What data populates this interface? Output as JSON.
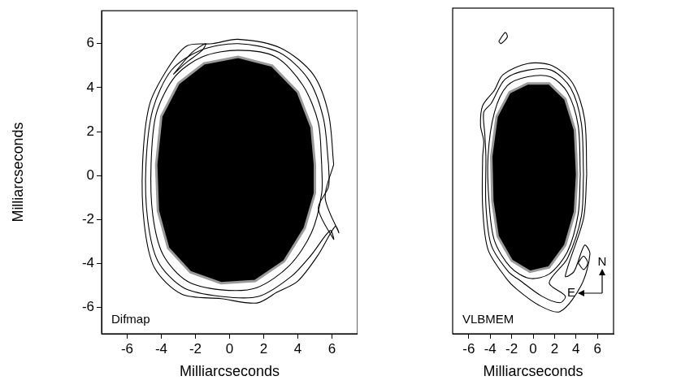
{
  "chart_data": [
    {
      "type": "contour",
      "label": "Difmap",
      "xlabel": "Milliarcseconds",
      "ylabel": "Milliarcseconds",
      "xlim": [
        -7.5,
        7.5
      ],
      "ylim": [
        -7.2,
        7.5
      ],
      "xticks": [
        -6,
        -4,
        -2,
        0,
        2,
        4,
        6
      ],
      "yticks": [
        -6,
        -4,
        -2,
        0,
        2,
        4,
        6
      ],
      "grid": false,
      "color": "#000000",
      "core": {
        "color": "#000000",
        "x": [
          5.0,
          4.8,
          4.0,
          2.5,
          0.5,
          -1.5,
          -3.0,
          -4.0,
          -4.3,
          -4.2,
          -3.6,
          -2.3,
          -0.5,
          1.5,
          3.2,
          4.4,
          5.0,
          5.0
        ],
        "y": [
          0.5,
          2.2,
          3.8,
          5.0,
          5.4,
          5.1,
          4.2,
          2.7,
          0.5,
          -1.6,
          -3.3,
          -4.4,
          -4.9,
          -4.8,
          -3.9,
          -2.4,
          -0.8,
          0.5
        ]
      },
      "contours": [
        {
          "x": [
            5.4,
            5.2,
            4.3,
            2.7,
            0.5,
            -1.6,
            -3.2,
            -4.3,
            -4.6,
            -4.5,
            -3.9,
            -2.5,
            -0.5,
            1.6,
            3.5,
            4.8,
            5.4,
            5.4
          ],
          "y": [
            0.5,
            2.4,
            4.1,
            5.4,
            5.7,
            5.4,
            4.5,
            2.8,
            0.5,
            -1.8,
            -3.6,
            -4.8,
            -5.2,
            -5.1,
            -4.1,
            -2.6,
            -0.8,
            0.5
          ]
        },
        {
          "x": [
            5.8,
            5.5,
            4.6,
            2.9,
            0.5,
            -1.7,
            -3.4,
            -4.5,
            -4.9,
            -4.8,
            -4.2,
            -2.7,
            -0.5,
            1.7,
            3.6,
            4.8,
            5.9,
            6.1,
            5.2,
            5.8,
            5.8
          ],
          "y": [
            0.5,
            2.6,
            4.4,
            5.6,
            6.0,
            5.7,
            4.8,
            3.0,
            0.5,
            -2.0,
            -3.9,
            -5.1,
            -5.5,
            -5.5,
            -4.6,
            -3.6,
            -2.5,
            -2.9,
            -1.5,
            -0.5,
            0.5
          ]
        },
        {
          "x": [
            6.1,
            5.8,
            4.9,
            3.0,
            0.5,
            -1.0,
            -2.5,
            -3.6,
            -4.7,
            -5.1,
            -5.0,
            -4.4,
            -2.8,
            -0.5,
            1.6,
            2.8,
            4.0,
            5.2,
            6.2,
            6.4,
            5.6,
            6.1
          ],
          "y": [
            0.5,
            2.8,
            4.6,
            5.8,
            6.2,
            6.0,
            5.9,
            4.9,
            3.2,
            0.5,
            -2.2,
            -4.2,
            -5.4,
            -5.6,
            -5.8,
            -5.3,
            -4.8,
            -3.6,
            -2.3,
            -2.6,
            -1.0,
            0.5
          ]
        },
        {
          "x": [
            -3.3,
            -2.2,
            -1.4,
            -1.6,
            -2.6,
            -3.3
          ],
          "y": [
            4.6,
            5.6,
            6.0,
            5.7,
            5.1,
            4.6
          ]
        }
      ]
    },
    {
      "type": "contour",
      "label": "VLBMEM",
      "xlabel": "Milliarcseconds",
      "xlim": [
        -7.5,
        7.5
      ],
      "ylim": [
        -7.2,
        7.5
      ],
      "xticks": [
        -6,
        -4,
        -2,
        0,
        2,
        4,
        6
      ],
      "yticks": [
        -6,
        -4,
        -2,
        0,
        2,
        4,
        6
      ],
      "tick_labels": "x",
      "grid": false,
      "color": "#000000",
      "annotations": [
        "N",
        "E"
      ],
      "core": {
        "color": "#000000",
        "x": [
          4.1,
          3.9,
          3.0,
          1.5,
          -0.5,
          -2.2,
          -3.4,
          -3.9,
          -3.8,
          -3.3,
          -2.0,
          -0.3,
          1.5,
          3.0,
          3.9,
          4.1
        ],
        "y": [
          0.0,
          2.0,
          3.4,
          4.1,
          4.1,
          3.7,
          2.6,
          0.8,
          -1.2,
          -2.8,
          -3.9,
          -4.4,
          -4.2,
          -3.2,
          -1.7,
          0.0
        ]
      },
      "contours": [
        {
          "x": [
            4.4,
            4.2,
            3.2,
            1.6,
            -0.5,
            -2.4,
            -3.6,
            -4.2,
            -4.1,
            -3.6,
            -2.1,
            -0.3,
            1.5,
            3.2,
            4.2,
            4.4
          ],
          "y": [
            0.0,
            2.2,
            3.7,
            4.4,
            4.4,
            4.0,
            2.8,
            0.8,
            -1.3,
            -3.0,
            -4.2,
            -4.7,
            -4.5,
            -3.5,
            -1.8,
            0.0
          ]
        },
        {
          "x": [
            4.7,
            4.5,
            3.5,
            1.7,
            -0.5,
            -2.6,
            -3.9,
            -4.6,
            -4.5,
            -4.4,
            -4.4,
            -3.9,
            -2.3,
            -1.2,
            0.8,
            2.5,
            3.0,
            1.5,
            3.2,
            4.5,
            4.7
          ],
          "y": [
            0.0,
            2.3,
            3.9,
            4.7,
            4.7,
            4.3,
            3.2,
            2.8,
            1.8,
            0.8,
            -1.4,
            -3.2,
            -4.4,
            -4.8,
            -5.5,
            -5.8,
            -5.5,
            -4.9,
            -3.8,
            -1.9,
            0.0
          ]
        },
        {
          "x": [
            5.0,
            4.8,
            3.7,
            1.8,
            -0.5,
            -2.8,
            -3.6,
            -4.7,
            -4.9,
            -4.6,
            -4.7,
            -4.7,
            -4.2,
            -2.5,
            -1.5,
            0.5,
            2.5,
            4.5,
            5.3,
            4.8,
            3.8,
            3.0,
            4.7,
            5.0
          ],
          "y": [
            0.0,
            2.5,
            4.1,
            4.9,
            5.0,
            4.5,
            3.8,
            3.1,
            2.2,
            1.5,
            0.8,
            -1.5,
            -3.4,
            -4.7,
            -5.2,
            -5.9,
            -6.2,
            -5.0,
            -3.6,
            -3.2,
            -4.4,
            -4.6,
            -2.0,
            0.0
          ]
        },
        {
          "x": [
            4.2,
            4.7,
            5.1,
            4.7,
            4.2
          ],
          "y": [
            -4.0,
            -3.7,
            -4.0,
            -4.3,
            -4.0
          ]
        },
        {
          "x": [
            -3.2,
            -2.6,
            -2.4,
            -3.0,
            -3.2
          ],
          "y": [
            6.0,
            6.4,
            6.2,
            5.9,
            6.0
          ]
        }
      ]
    }
  ]
}
